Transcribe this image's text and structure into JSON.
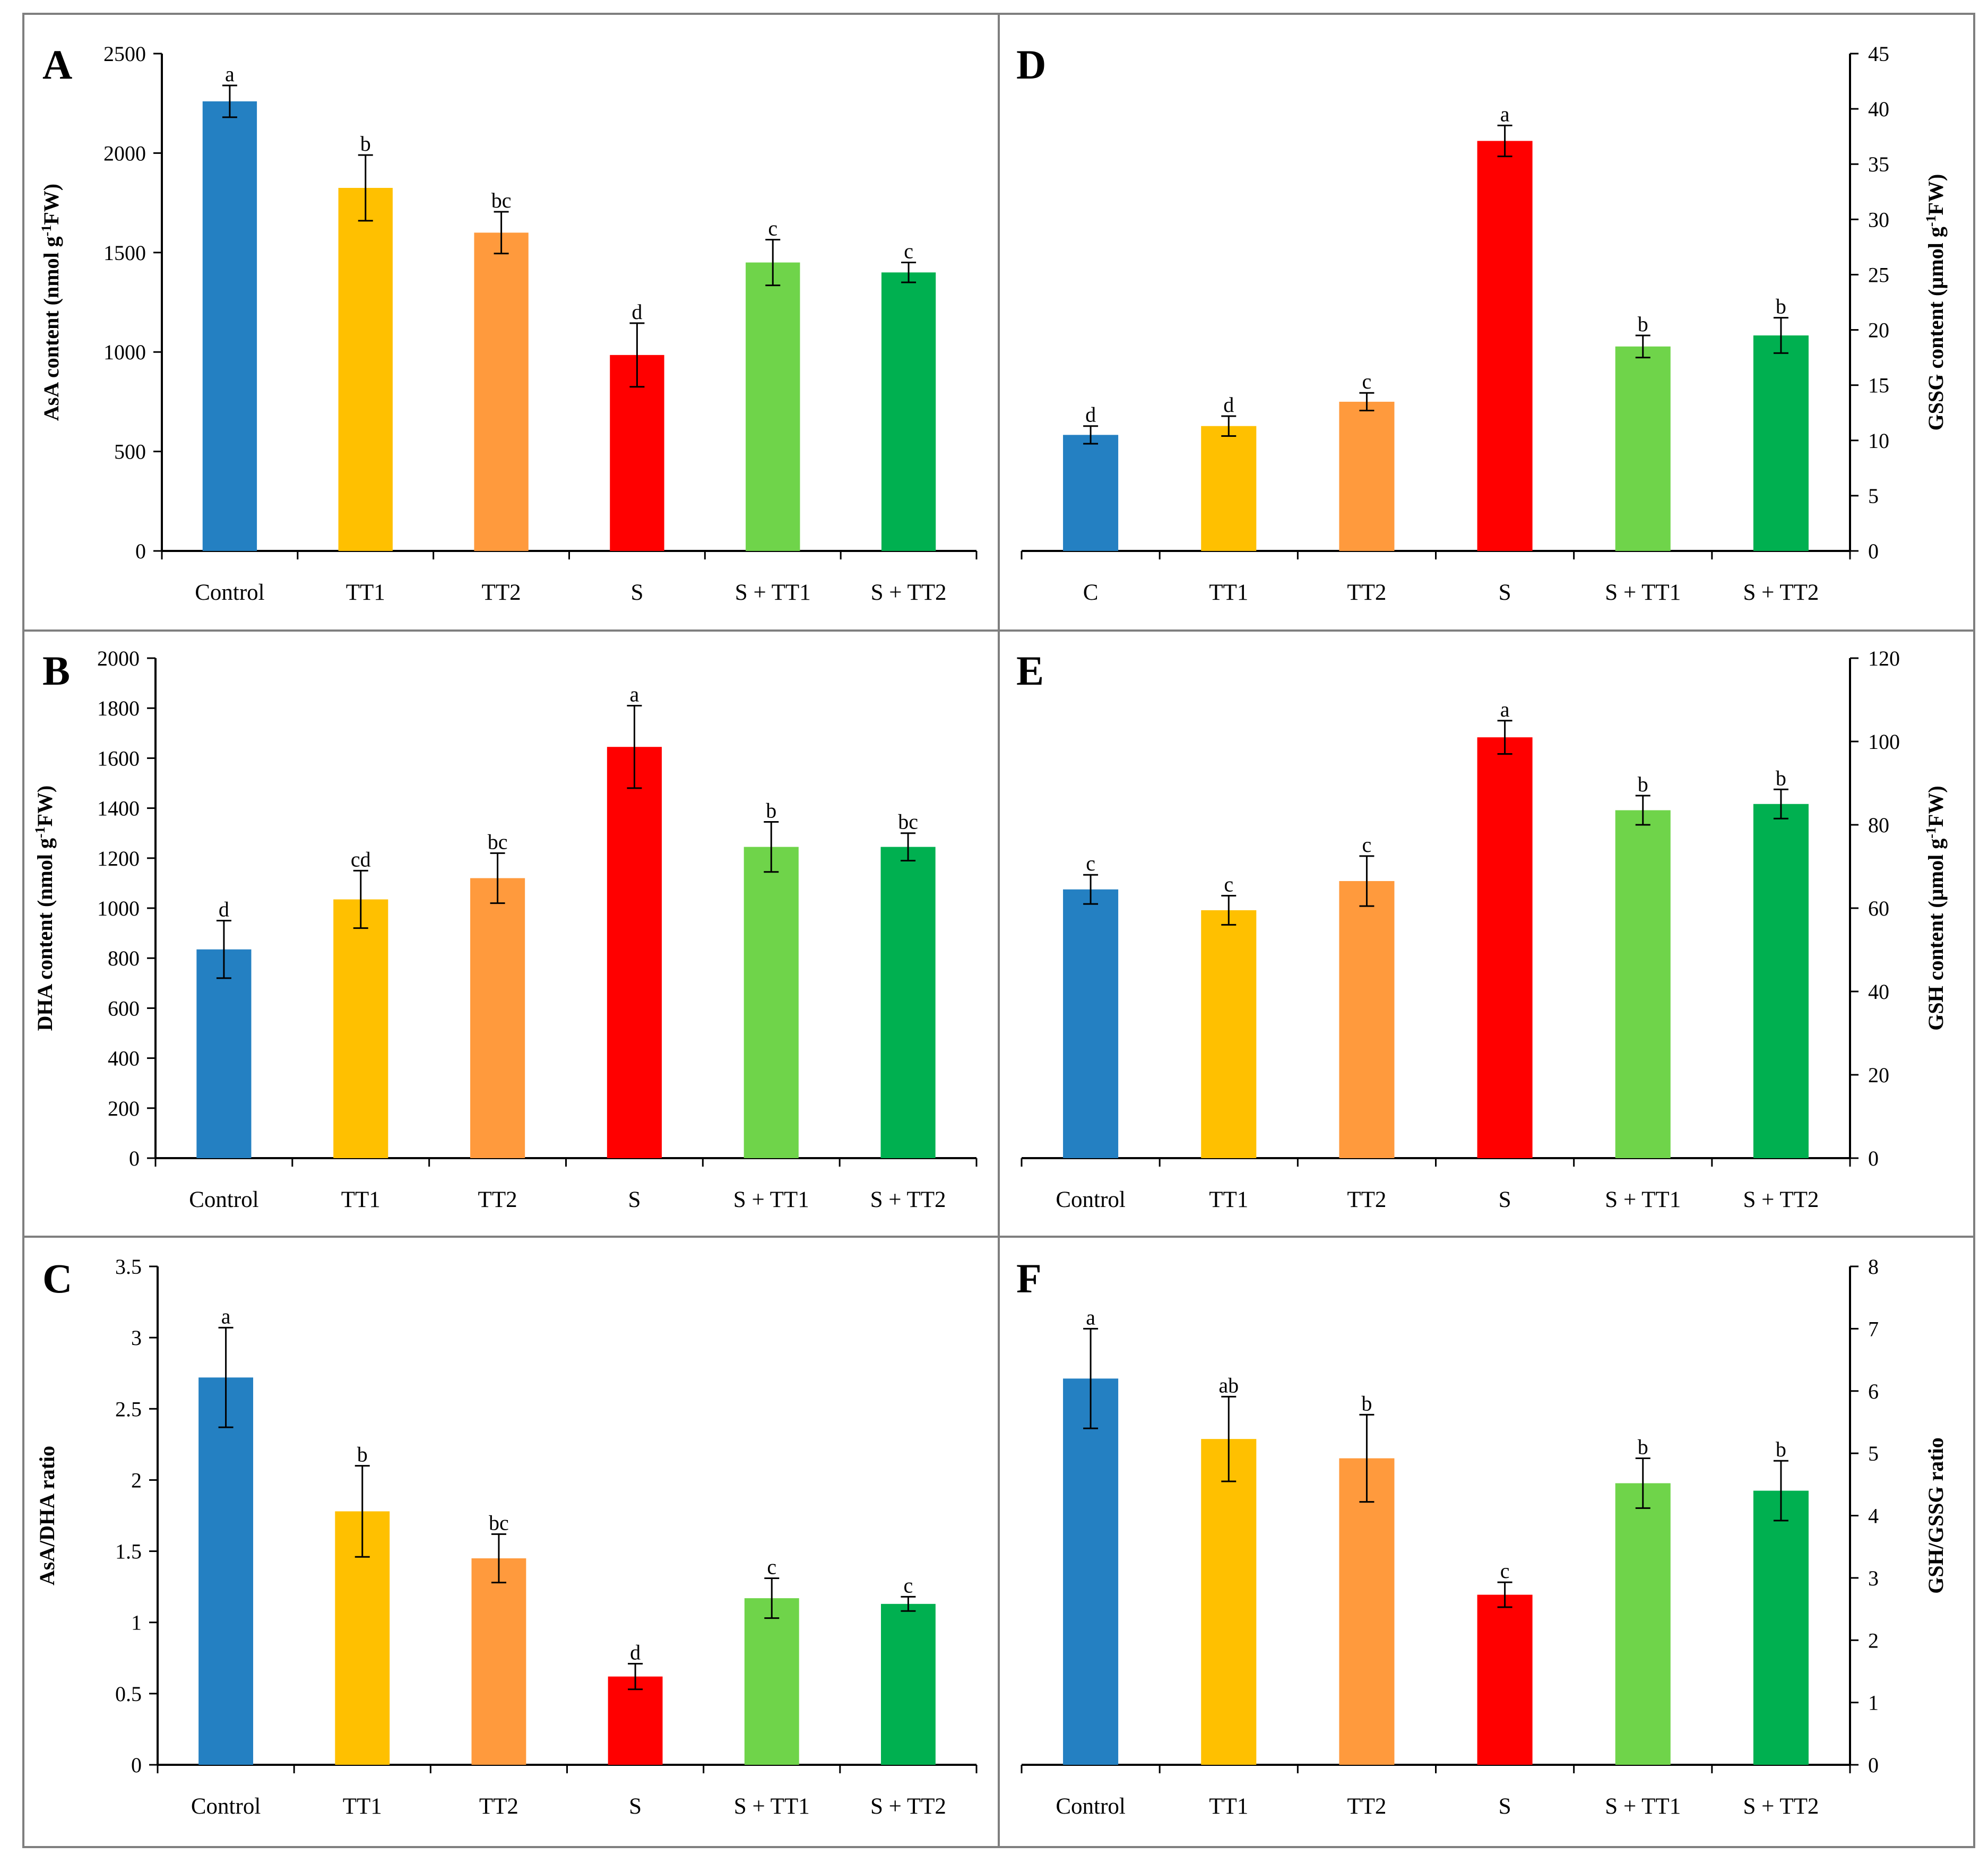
{
  "figure": {
    "panels": [
      {
        "id": "A",
        "label": "A",
        "axis_side": "left",
        "chart_data": {
          "type": "bar",
          "categories": [
            "Control",
            "TT1",
            "TT2",
            "S",
            "S + TT1",
            "S + TT2"
          ],
          "values": [
            2260,
            1825,
            1600,
            985,
            1450,
            1400
          ],
          "errors": [
            80,
            165,
            105,
            160,
            115,
            50
          ],
          "letters": [
            "a",
            "b",
            "bc",
            "d",
            "c",
            "c"
          ],
          "ylabel_parts": [
            "AsA content (nmol g",
            "-1",
            "FW)"
          ],
          "ylim": [
            0,
            2500
          ],
          "yticks": [
            0,
            500,
            1000,
            1500,
            2000,
            2500
          ],
          "ytick_labels": [
            "0",
            "500",
            "1000",
            "1500",
            "2000",
            "2500"
          ]
        }
      },
      {
        "id": "D",
        "label": "D",
        "axis_side": "right",
        "chart_data": {
          "type": "bar",
          "categories": [
            "C",
            "TT1",
            "TT2",
            "S",
            "S + TT1",
            "S + TT2"
          ],
          "values": [
            10.5,
            11.3,
            13.5,
            37.1,
            18.5,
            19.5
          ],
          "errors": [
            0.8,
            0.9,
            0.8,
            1.4,
            1.0,
            1.6
          ],
          "letters": [
            "d",
            "d",
            "c",
            "a",
            "b",
            "b"
          ],
          "ylabel_parts": [
            "GSSG content (µmol g",
            "-1",
            "FW)"
          ],
          "ylim": [
            0,
            45
          ],
          "yticks": [
            0,
            5,
            10,
            15,
            20,
            25,
            30,
            35,
            40,
            45
          ],
          "ytick_labels": [
            "0",
            "5",
            "10",
            "15",
            "20",
            "25",
            "30",
            "35",
            "40",
            "45"
          ]
        }
      },
      {
        "id": "B",
        "label": "B",
        "axis_side": "left",
        "chart_data": {
          "type": "bar",
          "categories": [
            "Control",
            "TT1",
            "TT2",
            "S",
            "S + TT1",
            "S + TT2"
          ],
          "values": [
            835,
            1035,
            1120,
            1645,
            1245,
            1245
          ],
          "errors": [
            115,
            115,
            100,
            165,
            100,
            55
          ],
          "letters": [
            "d",
            "cd",
            "bc",
            "a",
            "b",
            "bc"
          ],
          "ylabel_parts": [
            "DHA content (nmol g",
            "-1",
            "FW)"
          ],
          "ylim": [
            0,
            2000
          ],
          "yticks": [
            0,
            200,
            400,
            600,
            800,
            1000,
            1200,
            1400,
            1600,
            1800,
            2000
          ],
          "ytick_labels": [
            "0",
            "200",
            "400",
            "600",
            "800",
            "1000",
            "1200",
            "1400",
            "1600",
            "1800",
            "2000"
          ]
        }
      },
      {
        "id": "E",
        "label": "E",
        "axis_side": "right",
        "chart_data": {
          "type": "bar",
          "categories": [
            "Control",
            "TT1",
            "TT2",
            "S",
            "S + TT1",
            "S + TT2"
          ],
          "values": [
            64.5,
            59.5,
            66.5,
            101,
            83.5,
            85
          ],
          "errors": [
            3.5,
            3.5,
            6.0,
            4.0,
            3.5,
            3.5
          ],
          "letters": [
            "c",
            "c",
            "c",
            "a",
            "b",
            "b"
          ],
          "ylabel_parts": [
            "GSH content (µmol g",
            "-1",
            "FW)"
          ],
          "ylim": [
            0,
            120
          ],
          "yticks": [
            0,
            20,
            40,
            60,
            80,
            100,
            120
          ],
          "ytick_labels": [
            "0",
            "20",
            "40",
            "60",
            "80",
            "100",
            "120"
          ]
        }
      },
      {
        "id": "C",
        "label": "C",
        "axis_side": "left",
        "chart_data": {
          "type": "bar",
          "categories": [
            "Control",
            "TT1",
            "TT2",
            "S",
            "S + TT1",
            "S + TT2"
          ],
          "values": [
            2.72,
            1.78,
            1.45,
            0.62,
            1.17,
            1.13
          ],
          "errors": [
            0.35,
            0.32,
            0.17,
            0.09,
            0.14,
            0.05
          ],
          "letters": [
            "a",
            "b",
            "bc",
            "d",
            "c",
            "c"
          ],
          "ylabel_parts": [
            "AsA/DHA ratio"
          ],
          "ylim": [
            0,
            3.5
          ],
          "yticks": [
            0,
            0.5,
            1,
            1.5,
            2,
            2.5,
            3,
            3.5
          ],
          "ytick_labels": [
            "0",
            "0.5",
            "1",
            "1.5",
            "2",
            "2.5",
            "3",
            "3.5"
          ]
        }
      },
      {
        "id": "F",
        "label": "F",
        "axis_side": "right",
        "chart_data": {
          "type": "bar",
          "categories": [
            "Control",
            "TT1",
            "TT2",
            "S",
            "S + TT1",
            "S + TT2"
          ],
          "values": [
            6.2,
            5.23,
            4.92,
            2.73,
            4.52,
            4.4
          ],
          "errors": [
            0.8,
            0.68,
            0.7,
            0.2,
            0.4,
            0.48
          ],
          "letters": [
            "a",
            "ab",
            "b",
            "c",
            "b",
            "b"
          ],
          "ylabel_parts": [
            "GSH/GSSG ratio"
          ],
          "ylim": [
            0,
            8
          ],
          "yticks": [
            0,
            1,
            2,
            3,
            4,
            5,
            6,
            7,
            8
          ],
          "ytick_labels": [
            "0",
            "1",
            "2",
            "3",
            "4",
            "5",
            "6",
            "7",
            "8"
          ]
        }
      }
    ],
    "bar_colors": [
      "#2480C2",
      "#FFC000",
      "#FF9A3D",
      "#FF0000",
      "#6FD44A",
      "#00B050"
    ]
  }
}
